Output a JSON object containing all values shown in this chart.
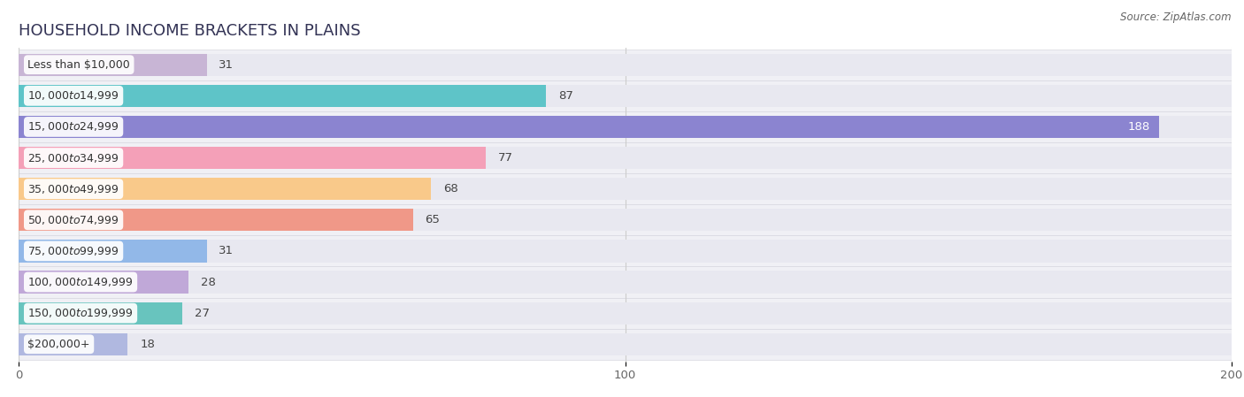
{
  "title": "HOUSEHOLD INCOME BRACKETS IN PLAINS",
  "source": "Source: ZipAtlas.com",
  "categories": [
    "Less than $10,000",
    "$10,000 to $14,999",
    "$15,000 to $24,999",
    "$25,000 to $34,999",
    "$35,000 to $49,999",
    "$50,000 to $74,999",
    "$75,000 to $99,999",
    "$100,000 to $149,999",
    "$150,000 to $199,999",
    "$200,000+"
  ],
  "values": [
    31,
    87,
    188,
    77,
    68,
    65,
    31,
    28,
    27,
    18
  ],
  "bar_colors": [
    "#c8b5d5",
    "#5ec4c8",
    "#8b84d0",
    "#f4a0b8",
    "#f9c98a",
    "#f09888",
    "#92b8e8",
    "#c0a8d8",
    "#68c4be",
    "#b0b8e0"
  ],
  "bg_color": "#ffffff",
  "row_bg_color": "#f0f0f5",
  "bar_bg_color": "#e8e8f0",
  "xlim": [
    0,
    200
  ],
  "xticks": [
    0,
    100,
    200
  ],
  "title_fontsize": 13,
  "label_fontsize": 9,
  "value_fontsize": 9.5,
  "source_fontsize": 8.5
}
